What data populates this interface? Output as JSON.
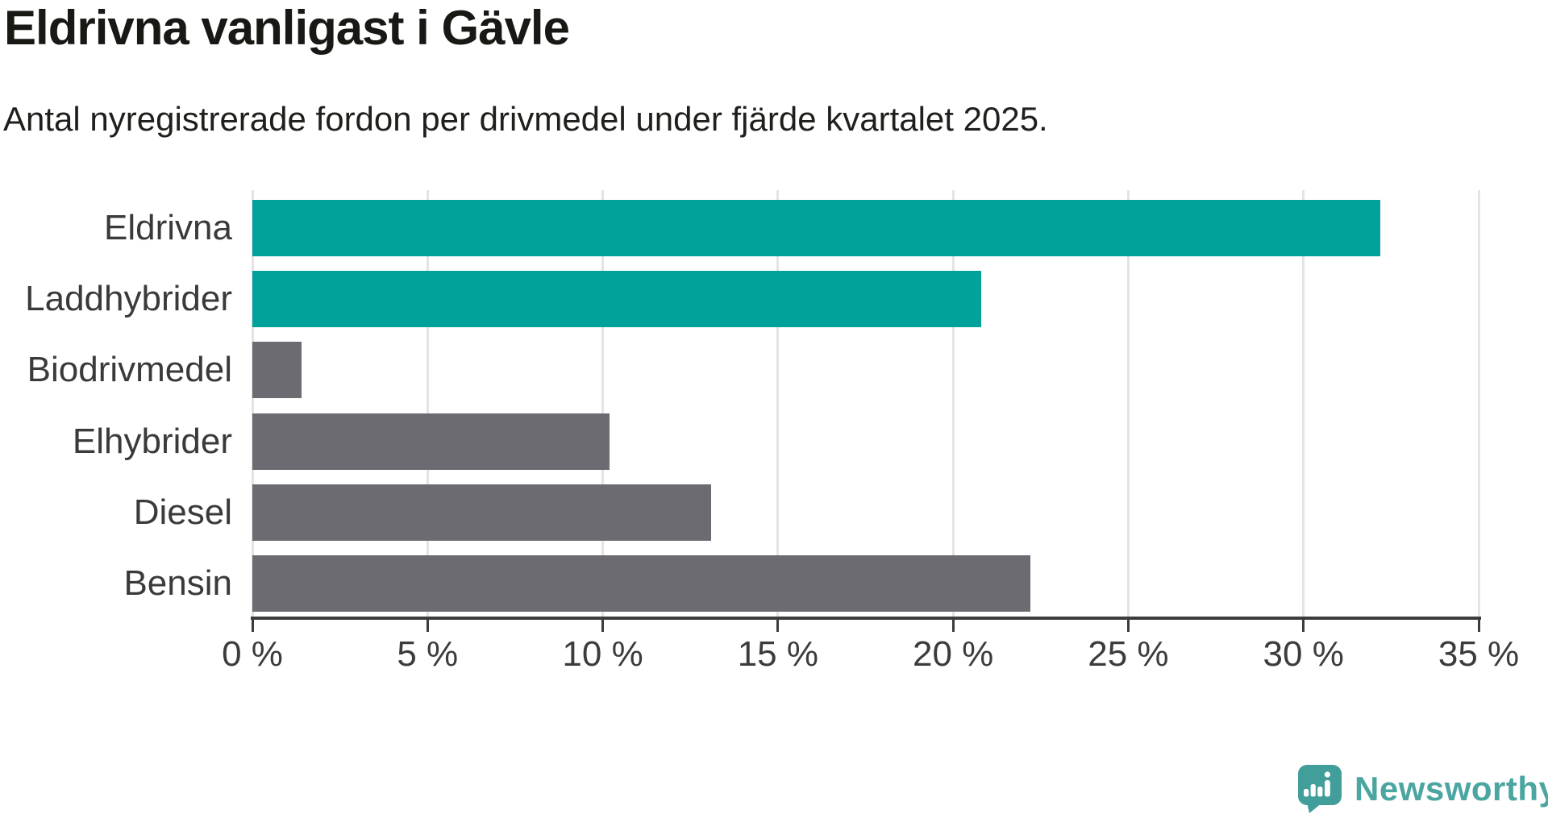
{
  "title": "Eldrivna vanligast i Gävle",
  "subtitle": "Antal nyregistrerade fordon per drivmedel under fjärde kvartalet 2025.",
  "chart_data": {
    "type": "bar",
    "orientation": "horizontal",
    "title": "Eldrivna vanligast i Gävle",
    "subtitle": "Antal nyregistrerade fordon per drivmedel under fjärde kvartalet 2025.",
    "categories": [
      "Eldrivna",
      "Laddhybrider",
      "Biodrivmedel",
      "Elhybrider",
      "Diesel",
      "Bensin"
    ],
    "values": [
      32.2,
      20.8,
      1.4,
      10.2,
      13.1,
      22.2
    ],
    "unit": "%",
    "xlabel": "",
    "ylabel": "",
    "xlim": [
      0,
      35
    ],
    "x_ticks": [
      0,
      5,
      10,
      15,
      20,
      25,
      30,
      35
    ],
    "x_tick_labels": [
      "0 %",
      "5 %",
      "10 %",
      "15 %",
      "20 %",
      "25 %",
      "30 %",
      "35 %"
    ],
    "grid": true,
    "legend": false,
    "highlight_color": "#00a29a",
    "base_color": "#6c6b71",
    "bar_colors": [
      "#00a29a",
      "#00a29a",
      "#6c6b71",
      "#6c6b71",
      "#6c6b71",
      "#6c6b71"
    ]
  },
  "colors": {
    "accent_teal": "#00a29a",
    "neutral_gray": "#6c6b71",
    "axis": "#3c3c3c",
    "gridline": "#e4e4e4",
    "text": "#181815",
    "brand": "#4ba5a1"
  },
  "branding": {
    "wordmark": "Newsworthy",
    "logo_icon": "newsworthy-pin-bar-chart-icon",
    "brand_color": "#4ba5a1"
  }
}
